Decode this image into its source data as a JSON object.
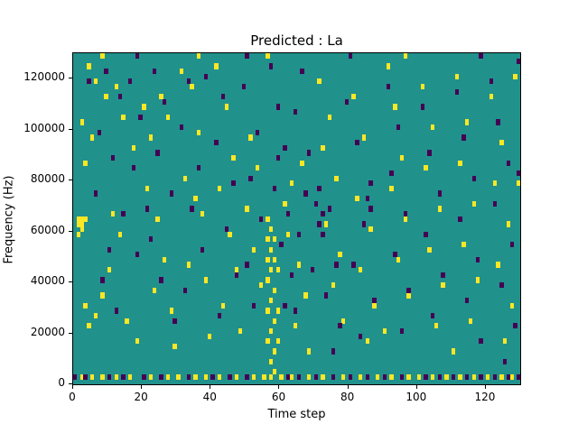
{
  "chart_data": {
    "type": "heatmap",
    "title": "Predicted : La",
    "xlabel": "Time step",
    "ylabel": "Frequency (Hz)",
    "xlim": [
      0,
      130
    ],
    "ylim": [
      0,
      130000
    ],
    "xticks": [
      0,
      20,
      40,
      60,
      80,
      100,
      120
    ],
    "yticks": [
      0,
      20000,
      40000,
      60000,
      80000,
      100000,
      120000
    ],
    "grid": false,
    "legend": "none",
    "cell_size": {
      "dt": 1,
      "df": 2000
    },
    "colormap": {
      "name": "viridis",
      "low": "#440154",
      "mid": "#21918c",
      "high": "#fde725"
    },
    "background_color": "#21918c",
    "series": [
      {
        "name": "high-value-cells-yellow",
        "color": "#fde725",
        "points": [
          [
            1,
            62000
          ],
          [
            1,
            64000
          ],
          [
            2,
            62000
          ],
          [
            2,
            64000
          ],
          [
            2,
            60000
          ],
          [
            3,
            64000
          ],
          [
            1,
            58000
          ],
          [
            3,
            30000
          ],
          [
            4,
            22000
          ],
          [
            6,
            26000
          ],
          [
            5,
            96000
          ],
          [
            3,
            86000
          ],
          [
            2,
            102000
          ],
          [
            6,
            118000
          ],
          [
            4,
            124000
          ],
          [
            8,
            128000
          ],
          [
            36,
            128000
          ],
          [
            56,
            128000
          ],
          [
            96,
            128000
          ],
          [
            9,
            112000
          ],
          [
            12,
            116000
          ],
          [
            14,
            104000
          ],
          [
            17,
            92000
          ],
          [
            11,
            66000
          ],
          [
            13,
            58000
          ],
          [
            10,
            44000
          ],
          [
            8,
            34000
          ],
          [
            15,
            24000
          ],
          [
            18,
            16000
          ],
          [
            20,
            108000
          ],
          [
            22,
            96000
          ],
          [
            25,
            112000
          ],
          [
            27,
            104000
          ],
          [
            21,
            76000
          ],
          [
            24,
            64000
          ],
          [
            26,
            48000
          ],
          [
            23,
            36000
          ],
          [
            28,
            28000
          ],
          [
            29,
            14000
          ],
          [
            31,
            122000
          ],
          [
            34,
            116000
          ],
          [
            36,
            98000
          ],
          [
            32,
            80000
          ],
          [
            35,
            72000
          ],
          [
            37,
            66000
          ],
          [
            33,
            46000
          ],
          [
            38,
            40000
          ],
          [
            39,
            18000
          ],
          [
            41,
            124000
          ],
          [
            44,
            108000
          ],
          [
            46,
            88000
          ],
          [
            42,
            76000
          ],
          [
            45,
            58000
          ],
          [
            47,
            44000
          ],
          [
            43,
            30000
          ],
          [
            48,
            20000
          ],
          [
            51,
            96000
          ],
          [
            53,
            84000
          ],
          [
            50,
            68000
          ],
          [
            52,
            52000
          ],
          [
            54,
            38000
          ],
          [
            56,
            64000
          ],
          [
            57,
            60000
          ],
          [
            56,
            56000
          ],
          [
            57,
            52000
          ],
          [
            58,
            48000
          ],
          [
            57,
            44000
          ],
          [
            56,
            40000
          ],
          [
            58,
            36000
          ],
          [
            57,
            32000
          ],
          [
            56,
            28000
          ],
          [
            58,
            24000
          ],
          [
            57,
            20000
          ],
          [
            56,
            16000
          ],
          [
            58,
            12000
          ],
          [
            57,
            8000
          ],
          [
            58,
            56000
          ],
          [
            59,
            44000
          ],
          [
            59,
            28000
          ],
          [
            59,
            16000
          ],
          [
            56,
            48000
          ],
          [
            61,
            70000
          ],
          [
            63,
            78000
          ],
          [
            66,
            86000
          ],
          [
            62,
            58000
          ],
          [
            65,
            46000
          ],
          [
            67,
            34000
          ],
          [
            64,
            22000
          ],
          [
            68,
            12000
          ],
          [
            71,
            118000
          ],
          [
            74,
            104000
          ],
          [
            72,
            92000
          ],
          [
            76,
            80000
          ],
          [
            73,
            62000
          ],
          [
            77,
            50000
          ],
          [
            75,
            38000
          ],
          [
            78,
            24000
          ],
          [
            81,
            112000
          ],
          [
            84,
            96000
          ],
          [
            82,
            72000
          ],
          [
            86,
            60000
          ],
          [
            83,
            44000
          ],
          [
            87,
            30000
          ],
          [
            85,
            16000
          ],
          [
            91,
            124000
          ],
          [
            93,
            108000
          ],
          [
            95,
            88000
          ],
          [
            92,
            76000
          ],
          [
            96,
            64000
          ],
          [
            94,
            48000
          ],
          [
            97,
            34000
          ],
          [
            90,
            20000
          ],
          [
            101,
            116000
          ],
          [
            104,
            100000
          ],
          [
            102,
            84000
          ],
          [
            106,
            68000
          ],
          [
            103,
            52000
          ],
          [
            107,
            38000
          ],
          [
            105,
            22000
          ],
          [
            111,
            120000
          ],
          [
            114,
            102000
          ],
          [
            112,
            86000
          ],
          [
            116,
            70000
          ],
          [
            113,
            54000
          ],
          [
            117,
            40000
          ],
          [
            115,
            24000
          ],
          [
            110,
            12000
          ],
          [
            121,
            112000
          ],
          [
            124,
            94000
          ],
          [
            122,
            78000
          ],
          [
            126,
            62000
          ],
          [
            123,
            46000
          ],
          [
            127,
            30000
          ],
          [
            125,
            16000
          ],
          [
            128,
            120000
          ],
          [
            129,
            78000
          ],
          [
            2,
            2000
          ],
          [
            5,
            2000
          ],
          [
            8,
            2000
          ],
          [
            12,
            2000
          ],
          [
            16,
            2000
          ],
          [
            22,
            2000
          ],
          [
            27,
            2000
          ],
          [
            30,
            2000
          ],
          [
            35,
            2000
          ],
          [
            38,
            2000
          ],
          [
            42,
            2000
          ],
          [
            47,
            2000
          ],
          [
            52,
            2000
          ],
          [
            55,
            2000
          ],
          [
            57,
            2000
          ],
          [
            58,
            4000
          ],
          [
            60,
            2000
          ],
          [
            63,
            2000
          ],
          [
            68,
            2000
          ],
          [
            72,
            2000
          ],
          [
            78,
            2000
          ],
          [
            83,
            2000
          ],
          [
            88,
            2000
          ],
          [
            92,
            2000
          ],
          [
            97,
            2000
          ],
          [
            100,
            2000
          ],
          [
            104,
            2000
          ],
          [
            108,
            2000
          ],
          [
            112,
            2000
          ],
          [
            116,
            2000
          ],
          [
            120,
            2000
          ],
          [
            124,
            2000
          ],
          [
            127,
            2000
          ]
        ]
      },
      {
        "name": "low-value-cells-purple",
        "color": "#440154",
        "points": [
          [
            4,
            118000
          ],
          [
            9,
            122000
          ],
          [
            13,
            112000
          ],
          [
            7,
            98000
          ],
          [
            11,
            88000
          ],
          [
            6,
            74000
          ],
          [
            14,
            66000
          ],
          [
            10,
            52000
          ],
          [
            8,
            40000
          ],
          [
            12,
            28000
          ],
          [
            18,
            128000
          ],
          [
            50,
            128000
          ],
          [
            80,
            128000
          ],
          [
            118,
            128000
          ],
          [
            129,
            126000
          ],
          [
            16,
            118000
          ],
          [
            19,
            104000
          ],
          [
            17,
            84000
          ],
          [
            21,
            68000
          ],
          [
            18,
            50000
          ],
          [
            23,
            122000
          ],
          [
            26,
            110000
          ],
          [
            24,
            90000
          ],
          [
            28,
            74000
          ],
          [
            22,
            56000
          ],
          [
            25,
            40000
          ],
          [
            29,
            24000
          ],
          [
            33,
            118000
          ],
          [
            31,
            100000
          ],
          [
            36,
            84000
          ],
          [
            34,
            68000
          ],
          [
            37,
            52000
          ],
          [
            32,
            36000
          ],
          [
            38,
            120000
          ],
          [
            43,
            112000
          ],
          [
            41,
            94000
          ],
          [
            46,
            78000
          ],
          [
            44,
            60000
          ],
          [
            47,
            42000
          ],
          [
            42,
            26000
          ],
          [
            49,
            116000
          ],
          [
            53,
            98000
          ],
          [
            51,
            80000
          ],
          [
            54,
            64000
          ],
          [
            50,
            46000
          ],
          [
            52,
            30000
          ],
          [
            57,
            124000
          ],
          [
            59,
            108000
          ],
          [
            61,
            92000
          ],
          [
            58,
            76000
          ],
          [
            62,
            66000
          ],
          [
            60,
            54000
          ],
          [
            63,
            42000
          ],
          [
            59,
            88000
          ],
          [
            61,
            30000
          ],
          [
            66,
            122000
          ],
          [
            64,
            106000
          ],
          [
            68,
            90000
          ],
          [
            67,
            74000
          ],
          [
            65,
            58000
          ],
          [
            69,
            44000
          ],
          [
            64,
            28000
          ],
          [
            70,
            70000
          ],
          [
            72,
            66000
          ],
          [
            71,
            62000
          ],
          [
            71,
            76000
          ],
          [
            74,
            68000
          ],
          [
            72,
            58000
          ],
          [
            76,
            46000
          ],
          [
            73,
            34000
          ],
          [
            77,
            22000
          ],
          [
            75,
            12000
          ],
          [
            79,
            110000
          ],
          [
            82,
            94000
          ],
          [
            86,
            78000
          ],
          [
            84,
            62000
          ],
          [
            81,
            46000
          ],
          [
            87,
            32000
          ],
          [
            83,
            18000
          ],
          [
            85,
            72000
          ],
          [
            86,
            68000
          ],
          [
            91,
            116000
          ],
          [
            94,
            100000
          ],
          [
            92,
            82000
          ],
          [
            96,
            66000
          ],
          [
            93,
            50000
          ],
          [
            97,
            36000
          ],
          [
            95,
            20000
          ],
          [
            101,
            108000
          ],
          [
            103,
            90000
          ],
          [
            106,
            74000
          ],
          [
            102,
            58000
          ],
          [
            107,
            42000
          ],
          [
            104,
            26000
          ],
          [
            111,
            114000
          ],
          [
            113,
            96000
          ],
          [
            116,
            80000
          ],
          [
            112,
            64000
          ],
          [
            117,
            48000
          ],
          [
            114,
            32000
          ],
          [
            118,
            16000
          ],
          [
            121,
            118000
          ],
          [
            123,
            102000
          ],
          [
            126,
            86000
          ],
          [
            122,
            70000
          ],
          [
            127,
            54000
          ],
          [
            124,
            38000
          ],
          [
            128,
            22000
          ],
          [
            125,
            8000
          ],
          [
            129,
            82000
          ],
          [
            0,
            2000
          ],
          [
            3,
            2000
          ],
          [
            10,
            2000
          ],
          [
            14,
            2000
          ],
          [
            20,
            2000
          ],
          [
            25,
            2000
          ],
          [
            33,
            2000
          ],
          [
            40,
            2000
          ],
          [
            45,
            2000
          ],
          [
            50,
            2000
          ],
          [
            62,
            2000
          ],
          [
            65,
            2000
          ],
          [
            70,
            2000
          ],
          [
            75,
            2000
          ],
          [
            80,
            2000
          ],
          [
            85,
            2000
          ],
          [
            90,
            2000
          ],
          [
            95,
            2000
          ],
          [
            102,
            2000
          ],
          [
            106,
            2000
          ],
          [
            110,
            2000
          ],
          [
            114,
            2000
          ],
          [
            118,
            2000
          ],
          [
            122,
            2000
          ],
          [
            126,
            2000
          ],
          [
            129,
            2000
          ]
        ]
      }
    ]
  }
}
